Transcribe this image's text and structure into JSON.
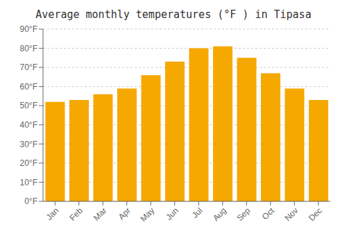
{
  "chart_data": {
    "type": "bar",
    "title": "Average monthly temperatures (°F ) in Tipasa",
    "categories": [
      "Jan",
      "Feb",
      "Mar",
      "Apr",
      "May",
      "Jun",
      "Jul",
      "Aug",
      "Sep",
      "Oct",
      "Nov",
      "Dec"
    ],
    "values": [
      52,
      53,
      56,
      59,
      66,
      73,
      80,
      81,
      75,
      67,
      59,
      53
    ],
    "color": "#F5A800",
    "ylim": [
      0,
      90
    ],
    "yticks": [
      {
        "value": 0,
        "label": "0°F"
      },
      {
        "value": 10,
        "label": "10°F"
      },
      {
        "value": 20,
        "label": "20°F"
      },
      {
        "value": 30,
        "label": "30°F"
      },
      {
        "value": 40,
        "label": "40°F"
      },
      {
        "value": 50,
        "label": "50°F"
      },
      {
        "value": 60,
        "label": "60°F"
      },
      {
        "value": 70,
        "label": "70°F"
      },
      {
        "value": 80,
        "label": "80°F"
      },
      {
        "value": 90,
        "label": "90°F"
      }
    ],
    "grid": true
  }
}
